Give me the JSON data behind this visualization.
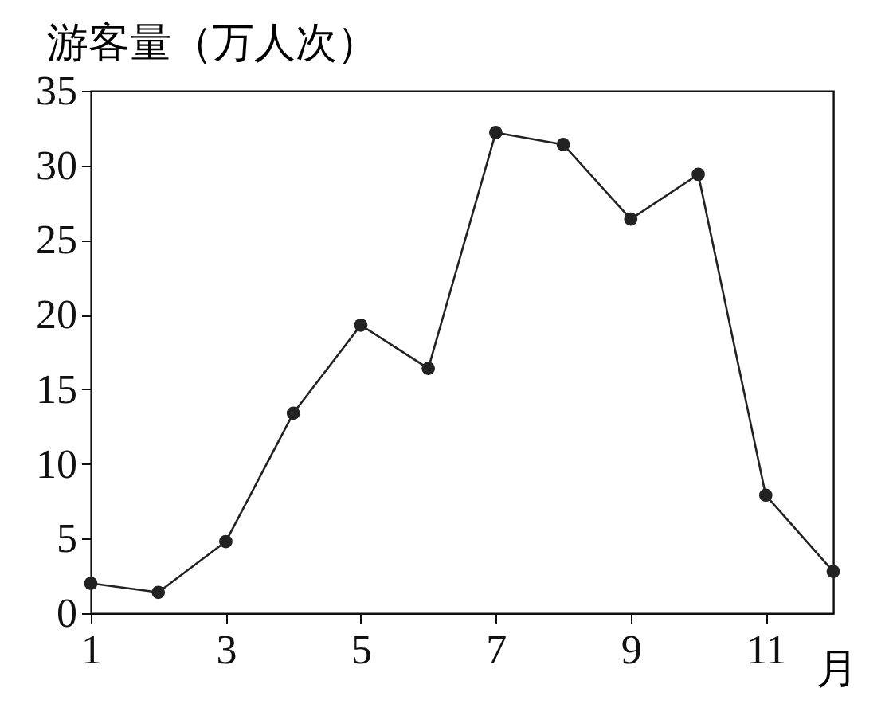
{
  "chart_data": {
    "type": "line",
    "ylabel": "游客量（万人次）",
    "xlabel": "月",
    "x": [
      1,
      2,
      3,
      4,
      5,
      6,
      7,
      8,
      9,
      10,
      11,
      12
    ],
    "series": [
      {
        "color": "#222222",
        "values": [
          2,
          1.4,
          4.8,
          13.4,
          19.3,
          16.4,
          32.2,
          31.4,
          26.4,
          29.4,
          7.9,
          2.8
        ]
      }
    ],
    "xlim": [
      1,
      12
    ],
    "xticks": [
      1,
      3,
      5,
      7,
      9,
      11
    ],
    "ylim": [
      0,
      35
    ],
    "yticks": [
      0,
      5,
      10,
      15,
      20,
      25,
      30,
      35
    ],
    "grid": false,
    "marker": "circle",
    "line_style": "solid"
  }
}
